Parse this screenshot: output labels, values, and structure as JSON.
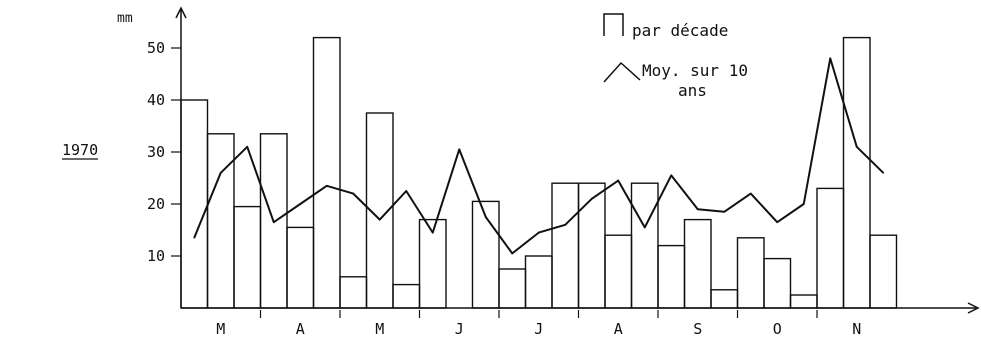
{
  "chart_data": {
    "type": "bar",
    "year_label": "1970",
    "ylabel": "mm",
    "ylim": [
      0,
      55
    ],
    "yticks": [
      10,
      20,
      30,
      40,
      50
    ],
    "categories": [
      "M",
      "A",
      "M",
      "J",
      "J",
      "A",
      "S",
      "O",
      "N"
    ],
    "legend": {
      "bar_label": "par décade",
      "line_label_1": "Moy. sur 10",
      "line_label_2": "ans",
      "placement": "top-right"
    },
    "bars": {
      "name": "par décade",
      "values": [
        40,
        33.5,
        19.5,
        33.5,
        15.5,
        52,
        6,
        37.5,
        4.5,
        17,
        0,
        20.5,
        7.5,
        10,
        24,
        24,
        14,
        24,
        12,
        17,
        3.5,
        13.5,
        9.5,
        2.5,
        23,
        52,
        14
      ]
    },
    "line": {
      "name": "Moy. sur 10 ans",
      "values": [
        13.5,
        26,
        31,
        16.5,
        20,
        23.5,
        22,
        17,
        22.5,
        14.5,
        30.5,
        17.5,
        10.5,
        14.5,
        16,
        21,
        24.5,
        15.5,
        25.5,
        19,
        18.5,
        22,
        16.5,
        20,
        48,
        31,
        26
      ]
    }
  }
}
